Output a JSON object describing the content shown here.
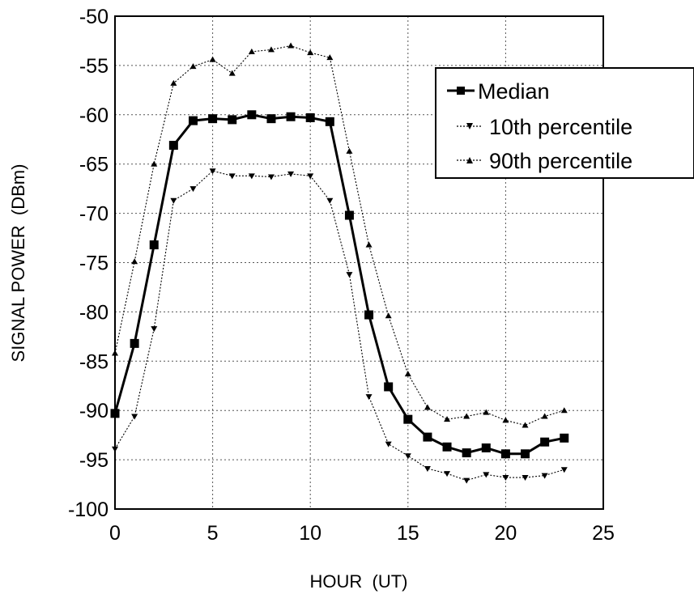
{
  "chart_data": {
    "type": "line",
    "title": "",
    "xlabel": "HOUR  (UT)",
    "ylabel": "SIGNAL POWER  (DBm)",
    "xlim": [
      0,
      25
    ],
    "ylim": [
      -100,
      -50
    ],
    "xticks": [
      "0",
      "5",
      "10",
      "15",
      "20",
      "25"
    ],
    "yticks": [
      "-50",
      "-55",
      "-60",
      "-65",
      "-70",
      "-75",
      "-80",
      "-85",
      "-90",
      "-95",
      "-100"
    ],
    "grid": true,
    "legend_position": "top-right",
    "x": [
      0,
      1,
      2,
      3,
      4,
      5,
      6,
      7,
      8,
      9,
      10,
      11,
      12,
      13,
      14,
      15,
      16,
      17,
      18,
      19,
      20,
      21,
      22,
      23
    ],
    "series": [
      {
        "name": "Median",
        "marker": "square",
        "line": "solid",
        "values": [
          -90.3,
          -83.2,
          -73.2,
          -63.1,
          -60.6,
          -60.4,
          -60.5,
          -60.0,
          -60.4,
          -60.2,
          -60.3,
          -60.7,
          -70.2,
          -80.3,
          -87.6,
          -90.9,
          -92.7,
          -93.7,
          -94.3,
          -93.8,
          -94.4,
          -94.4,
          -93.2,
          -92.8
        ]
      },
      {
        "name": "10th percentile",
        "marker": "triangle-down",
        "line": "dotted",
        "values": [
          -93.9,
          -90.6,
          -81.7,
          -68.7,
          -67.5,
          -65.7,
          -66.2,
          -66.2,
          -66.3,
          -66.0,
          -66.2,
          -68.7,
          -76.2,
          -88.6,
          -93.4,
          -94.6,
          -95.9,
          -96.4,
          -97.1,
          -96.5,
          -96.8,
          -96.8,
          -96.6,
          -96.0
        ]
      },
      {
        "name": "90th percentile",
        "marker": "triangle-up",
        "line": "dotted",
        "values": [
          -84.2,
          -74.9,
          -65.0,
          -56.8,
          -55.1,
          -54.4,
          -55.8,
          -53.6,
          -53.4,
          -53.0,
          -53.7,
          -54.2,
          -63.7,
          -73.2,
          -80.4,
          -86.3,
          -89.7,
          -90.9,
          -90.6,
          -90.2,
          -91.0,
          -91.5,
          -90.6,
          -90.0
        ]
      }
    ]
  }
}
